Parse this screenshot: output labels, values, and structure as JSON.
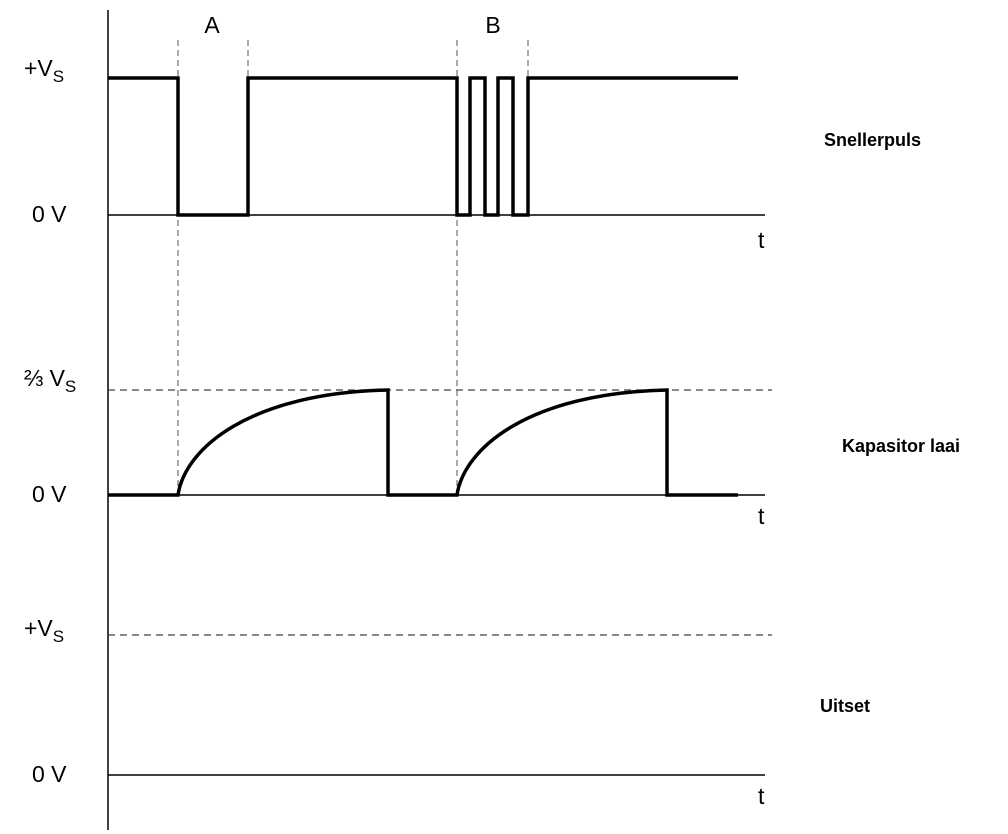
{
  "markers": {
    "a": "A",
    "b": "B"
  },
  "panels": {
    "trigger": {
      "top_prefix": "+V",
      "top_sub": "S",
      "bottom_label": "0 V",
      "time_label": "t",
      "title": "Snellerpuls"
    },
    "capacitor": {
      "top_prefix": "⅔ V",
      "top_sub": "S",
      "bottom_label": "0 V",
      "time_label": "t",
      "title": "Kapasitor laai"
    },
    "output": {
      "top_prefix": "+V",
      "top_sub": "S",
      "bottom_label": "0 V",
      "time_label": "t",
      "title": "Uitset"
    }
  },
  "colors": {
    "line": "#000000",
    "guide": "#555555",
    "background": "#ffffff"
  }
}
